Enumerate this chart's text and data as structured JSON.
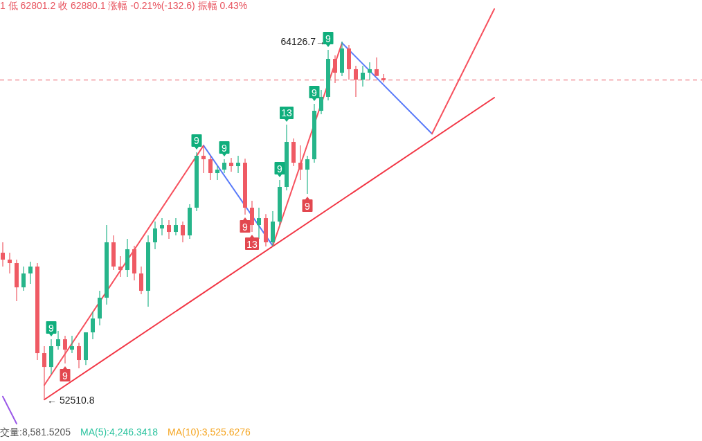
{
  "chart_data": {
    "type": "candlestick",
    "categories": [
      null,
      null,
      null,
      null,
      null,
      null,
      null,
      null,
      null,
      null,
      null,
      null,
      null,
      null,
      null,
      null,
      null,
      null,
      null,
      null,
      null,
      null,
      null,
      null,
      null,
      null,
      null,
      null,
      null,
      null,
      null,
      null,
      null,
      null,
      null,
      null,
      null,
      null,
      null,
      null,
      null,
      null,
      null,
      null,
      null,
      null,
      null,
      null,
      null,
      null,
      null,
      null,
      null,
      null,
      null,
      null,
      null,
      null,
      null,
      null,
      null,
      null,
      null,
      null,
      null,
      null,
      null,
      null,
      null,
      null,
      null,
      null
    ],
    "ohlc": [
      [
        57287,
        57624,
        56839,
        57063
      ],
      [
        57063,
        57287,
        56615,
        56951
      ],
      [
        56951,
        57063,
        55718,
        56166
      ],
      [
        56166,
        56839,
        56054,
        56615
      ],
      [
        56615,
        56996,
        56278,
        56839
      ],
      [
        56839,
        56951,
        53812,
        54036
      ],
      [
        54036,
        54260,
        52510.8,
        53587
      ],
      [
        53587,
        54484,
        53363,
        54260
      ],
      [
        54260,
        54753,
        54148,
        54484
      ],
      [
        54484,
        54596,
        53699,
        54148
      ],
      [
        54148,
        54596,
        54036,
        54260
      ],
      [
        54260,
        54372,
        53542,
        53812
      ],
      [
        53812,
        54708,
        53650,
        54708
      ],
      [
        54708,
        55381,
        54484,
        55157
      ],
      [
        55157,
        56054,
        54933,
        55830
      ],
      [
        55830,
        58184,
        55605,
        57624
      ],
      [
        57624,
        57848,
        56727,
        56839
      ],
      [
        56839,
        57175,
        56502,
        56727
      ],
      [
        56727,
        57736,
        56502,
        57399
      ],
      [
        57399,
        57511,
        56390,
        56615
      ],
      [
        56615,
        56839,
        55942,
        56054
      ],
      [
        56054,
        57848,
        55538,
        57624
      ],
      [
        57624,
        58296,
        57399,
        58072
      ],
      [
        58072,
        58408,
        57848,
        58184
      ],
      [
        58184,
        58341,
        57736,
        57960
      ],
      [
        57960,
        58408,
        57848,
        58184
      ],
      [
        58184,
        58296,
        57624,
        57848
      ],
      [
        57848,
        58857,
        57736,
        58745
      ],
      [
        58745,
        60539,
        58633,
        60427
      ],
      [
        60427,
        60763,
        59866,
        60314
      ],
      [
        60314,
        60427,
        59642,
        59866
      ],
      [
        59866,
        60090,
        59642,
        59978
      ],
      [
        59978,
        60314,
        59866,
        60202
      ],
      [
        60202,
        60359,
        59911,
        60090
      ],
      [
        60090,
        60427,
        59866,
        60202
      ],
      [
        60202,
        60330,
        58521,
        58745
      ],
      [
        58745,
        58969,
        57960,
        58184
      ],
      [
        58184,
        58745,
        57736,
        58408
      ],
      [
        58408,
        58540,
        57489,
        57624
      ],
      [
        57624,
        58633,
        57511,
        58296
      ],
      [
        58296,
        59642,
        58184,
        59418
      ],
      [
        59418,
        61436,
        59305,
        60875
      ],
      [
        60875,
        60987,
        60090,
        60202
      ],
      [
        60202,
        60763,
        59642,
        59978
      ],
      [
        59978,
        60427,
        59193,
        60314
      ],
      [
        60314,
        62108,
        60202,
        61884
      ],
      [
        61884,
        62557,
        61772,
        62333
      ],
      [
        62333,
        63857,
        62221,
        63566
      ],
      [
        63566,
        63678,
        62781,
        63117
      ],
      [
        63117,
        64126.7,
        63005,
        63902
      ],
      [
        63902,
        64014,
        62893,
        63230
      ],
      [
        63230,
        63342,
        62333,
        62893
      ],
      [
        62893,
        63342,
        62669,
        63117
      ],
      [
        63117,
        63454,
        62893,
        63230
      ],
      [
        63230,
        63611,
        63005,
        63012.7
      ],
      [
        62938,
        63071,
        62801.2,
        62880.1
      ],
      null,
      null,
      null,
      null,
      null,
      null,
      null,
      null,
      null,
      null,
      null,
      null,
      null,
      null,
      null,
      null
    ],
    "series": [
      {
        "type": "line",
        "color": "#f23645",
        "values": [
          null,
          null,
          null,
          null,
          null,
          null,
          52530,
          null,
          null,
          null,
          null,
          null,
          null,
          null,
          null,
          null,
          null,
          null,
          null,
          null,
          null,
          null,
          null,
          null,
          null,
          null,
          null,
          null,
          null,
          null,
          null,
          null,
          null,
          null,
          null,
          null,
          null,
          null,
          null,
          null,
          null,
          null,
          null,
          null,
          null,
          null,
          null,
          null,
          null,
          null,
          null,
          null,
          null,
          null,
          null,
          null,
          null,
          null,
          null,
          null,
          null,
          null,
          null,
          null,
          null,
          null,
          null,
          null,
          null,
          null,
          null,
          62310
        ]
      },
      {
        "type": "line",
        "color": "#f7525f",
        "values": [
          null,
          null,
          null,
          null,
          null,
          null,
          53000,
          null,
          null,
          null,
          null,
          null,
          null,
          null,
          null,
          null,
          null,
          null,
          null,
          null,
          null,
          null,
          null,
          null,
          null,
          null,
          null,
          null,
          null,
          60760,
          null,
          null,
          null,
          null,
          null,
          null,
          null,
          null,
          null,
          null,
          null,
          null,
          null,
          null,
          null,
          null,
          null,
          null,
          null,
          null,
          null,
          null,
          null,
          null,
          null,
          null,
          null,
          null,
          null,
          null,
          null,
          null,
          null,
          null,
          null,
          null,
          null,
          null,
          null,
          null,
          null,
          null
        ]
      },
      {
        "type": "line",
        "color": "#5b7cfa",
        "values": [
          null,
          null,
          null,
          null,
          null,
          null,
          null,
          null,
          null,
          null,
          null,
          null,
          null,
          null,
          null,
          null,
          null,
          null,
          null,
          null,
          null,
          null,
          null,
          null,
          null,
          null,
          null,
          null,
          null,
          60760,
          null,
          null,
          null,
          null,
          null,
          null,
          null,
          null,
          null,
          57510,
          null,
          null,
          null,
          null,
          null,
          null,
          null,
          null,
          null,
          null,
          null,
          null,
          null,
          null,
          null,
          null,
          null,
          null,
          null,
          null,
          null,
          null,
          null,
          null,
          null,
          null,
          null,
          null,
          null,
          null,
          null,
          null
        ]
      },
      {
        "type": "line",
        "color": "#f7525f",
        "values": [
          null,
          null,
          null,
          null,
          null,
          null,
          null,
          null,
          null,
          null,
          null,
          null,
          null,
          null,
          null,
          null,
          null,
          null,
          null,
          null,
          null,
          null,
          null,
          null,
          null,
          null,
          null,
          null,
          null,
          null,
          null,
          null,
          null,
          null,
          null,
          null,
          null,
          null,
          null,
          57510,
          null,
          null,
          null,
          null,
          null,
          null,
          null,
          null,
          null,
          64080,
          null,
          null,
          null,
          null,
          null,
          null,
          null,
          null,
          null,
          null,
          null,
          null,
          null,
          null,
          null,
          null,
          null,
          null,
          null,
          null,
          null,
          null
        ]
      },
      {
        "type": "line",
        "color": "#5b7cfa",
        "values": [
          null,
          null,
          null,
          null,
          null,
          null,
          null,
          null,
          null,
          null,
          null,
          null,
          null,
          null,
          null,
          null,
          null,
          null,
          null,
          null,
          null,
          null,
          null,
          null,
          null,
          null,
          null,
          null,
          null,
          null,
          null,
          null,
          null,
          null,
          null,
          null,
          null,
          null,
          null,
          null,
          null,
          null,
          null,
          null,
          null,
          null,
          null,
          null,
          null,
          64080,
          null,
          null,
          null,
          null,
          null,
          null,
          null,
          null,
          null,
          null,
          null,
          null,
          61140,
          null,
          null,
          null,
          null,
          null,
          null,
          null,
          null,
          null
        ]
      },
      {
        "type": "line",
        "color": "#f7525f",
        "values": [
          null,
          null,
          null,
          null,
          null,
          null,
          null,
          null,
          null,
          null,
          null,
          null,
          null,
          null,
          null,
          null,
          null,
          null,
          null,
          null,
          null,
          null,
          null,
          null,
          null,
          null,
          null,
          null,
          null,
          null,
          null,
          null,
          null,
          null,
          null,
          null,
          null,
          null,
          null,
          null,
          null,
          null,
          null,
          null,
          null,
          null,
          null,
          null,
          null,
          null,
          null,
          null,
          null,
          null,
          null,
          null,
          null,
          null,
          null,
          null,
          null,
          null,
          61140,
          null,
          null,
          null,
          null,
          null,
          null,
          null,
          null,
          65180
        ]
      },
      {
        "type": "line",
        "color": "#9b59e8",
        "values": [
          52630,
          null,
          51750,
          null,
          null,
          null,
          null,
          null,
          null,
          null,
          null,
          null,
          null,
          null,
          null,
          null,
          null,
          null,
          null,
          null,
          null,
          null,
          null,
          null,
          null,
          null,
          null,
          null,
          null,
          null,
          null,
          null,
          null,
          null,
          null,
          null,
          null,
          null,
          null,
          null,
          null,
          null,
          null,
          null,
          null,
          null,
          null,
          null,
          null,
          null,
          null,
          null,
          null,
          null,
          null,
          null,
          null,
          null,
          null,
          null,
          null,
          null,
          null,
          null,
          null,
          null,
          null,
          null,
          null,
          null,
          null,
          null
        ]
      }
    ],
    "ref_lines": [
      {
        "axis": "y",
        "value": 62880.1,
        "color": "#e8545f",
        "line_style": "dashed"
      }
    ],
    "annotations": [
      "1 低 62801.2 收 62880.1 涨幅 -0.21%(-132.6) 振幅 0.43%",
      "交量:8,581.5205",
      "MA(5):4,246.3418",
      "MA(10):3,525.6276",
      "64126.7→",
      "← 52510.8",
      "9",
      "9",
      "9",
      "9",
      "9",
      "13",
      "13",
      "9",
      "9",
      "9",
      "9"
    ]
  }
}
